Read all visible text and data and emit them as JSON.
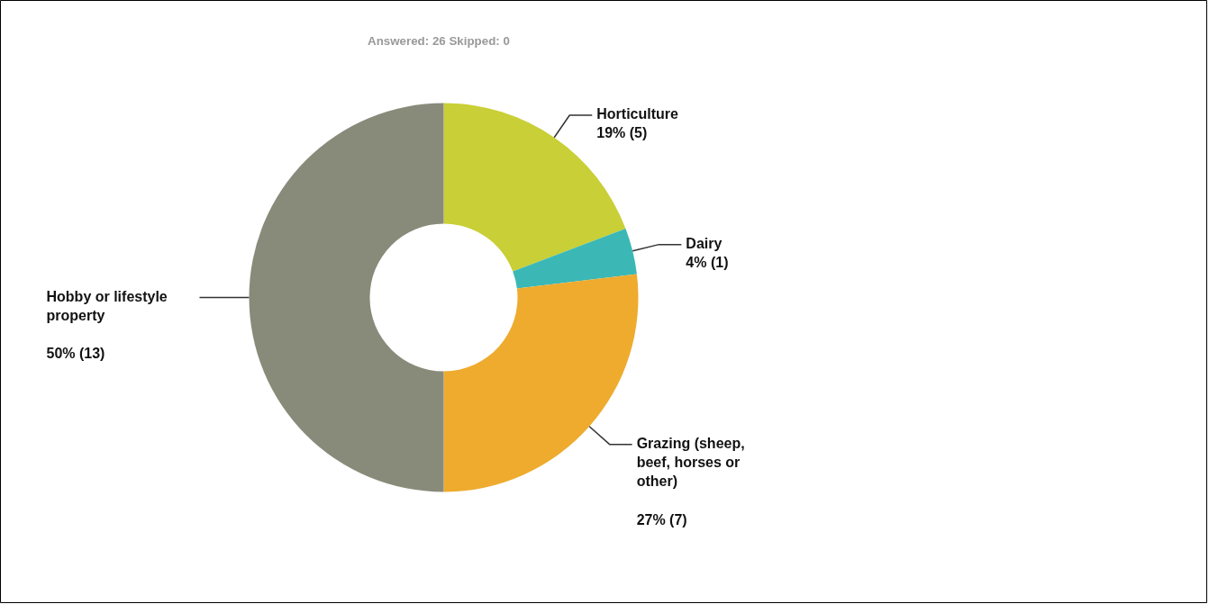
{
  "chart_data": {
    "type": "donut",
    "subtitle": "Answered: 26    Skipped: 0",
    "categories": [
      "Horticulture",
      "Dairy",
      "Grazing (sheep, beef, horses or other)",
      "Hobby or lifestyle property"
    ],
    "values": [
      5,
      1,
      7,
      13
    ],
    "value_labels": [
      "19% (5)",
      "4% (1)",
      "27% (7)",
      "50% (13)"
    ],
    "colors": [
      "#c9cf36",
      "#3bb8b6",
      "#eeab2e",
      "#898b7a"
    ]
  }
}
